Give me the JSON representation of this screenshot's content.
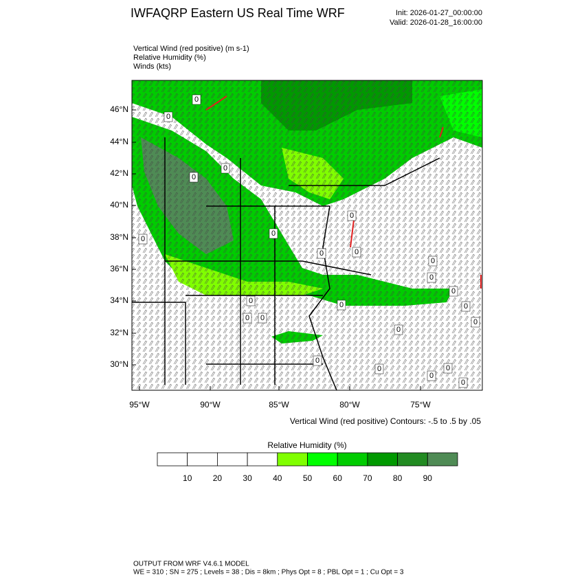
{
  "header": {
    "title": "IWFAQRP Eastern US Real Time WRF",
    "init": "Init: 2026-01-27_00:00:00",
    "valid": "Valid: 2026-01-28_16:00:00"
  },
  "fields": [
    "Vertical Wind (red positive)   (m s-1)",
    "Relative Humidity   (%)",
    "Winds   (kts)"
  ],
  "map": {
    "lat_labels": [
      "46°N",
      "44°N",
      "42°N",
      "40°N",
      "38°N",
      "36°N",
      "34°N",
      "32°N",
      "30°N"
    ],
    "lon_labels": [
      "95°W",
      "90°W",
      "85°W",
      "80°W",
      "75°W"
    ],
    "contour_labels": [
      "0",
      "0",
      "0",
      "0",
      "0",
      "0",
      "0",
      "0",
      "0",
      "0",
      "0",
      "0",
      "0",
      "0",
      "0",
      "0",
      "0",
      "0",
      "0",
      "0",
      "0",
      "0",
      "0",
      "0"
    ],
    "contour_note": "Vertical Wind (red positive) Contours: -.5 to .5 by .05"
  },
  "colorbar": {
    "title": "Relative Humidity  (%)",
    "labels": [
      "10",
      "20",
      "30",
      "40",
      "50",
      "60",
      "70",
      "80",
      "90"
    ],
    "colors": [
      "#ffffff",
      "#ffffff",
      "#ffffff",
      "#ffffff",
      "#80ff00",
      "#00ff00",
      "#00cc00",
      "#009900",
      "#228b22",
      "#4f8b55"
    ]
  },
  "footer": {
    "line1": "OUTPUT FROM WRF V4.6.1 MODEL",
    "line2": "WE = 310 ; SN = 275 ; Levels = 38 ; Dis = 8km ; Phys Opt = 8 ; PBL Opt = 1 ; Cu Opt = 3"
  }
}
